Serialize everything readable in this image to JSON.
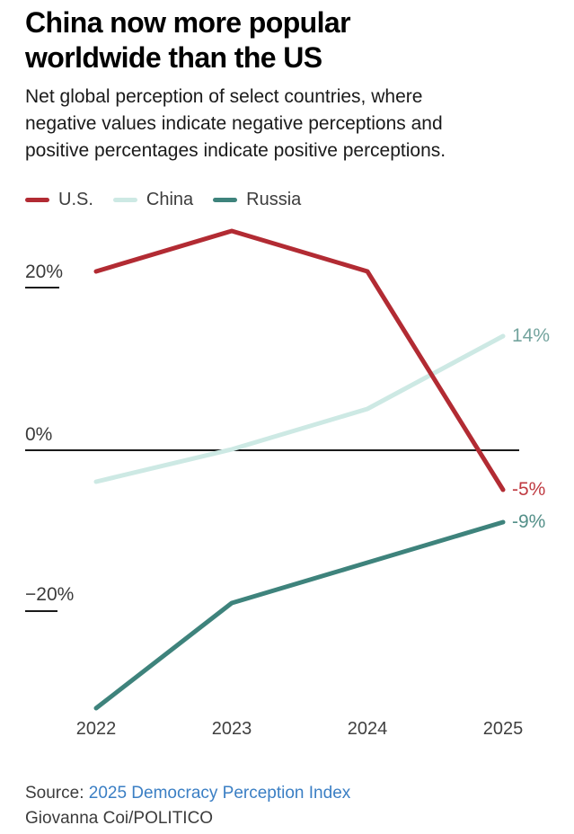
{
  "header": {
    "title_lines": [
      "China now more popular",
      "worldwide than the US"
    ],
    "subtitle_lines": [
      "Net global perception of select countries, where",
      "negative values indicate negative perceptions and",
      "positive percentages indicate positive perceptions."
    ]
  },
  "chart_data": {
    "type": "line",
    "title": "China now more popular worldwide than the US",
    "subtitle": "Net global perception of select countries, where negative values indicate negative perceptions and positive percentages indicate positive perceptions.",
    "x": [
      2022,
      2023,
      2024,
      2025
    ],
    "xtick_labels": [
      "2022",
      "2023",
      "2024",
      "2025"
    ],
    "series": [
      {
        "name": "U.S.",
        "color": "#b22b33",
        "values": [
          22,
          27,
          22,
          -5
        ],
        "end_label": "-5%",
        "end_label_color": "#bf3a41"
      },
      {
        "name": "China",
        "color": "#cde9e4",
        "values": [
          -4,
          0,
          5,
          14
        ],
        "end_label": "14%",
        "end_label_color": "#74a49e"
      },
      {
        "name": "Russia",
        "color": "#3e837c",
        "values": [
          -32,
          -19,
          -14,
          -9
        ],
        "end_label": "-9%",
        "end_label_color": "#549089"
      }
    ],
    "yticks": [
      {
        "label": "20%",
        "value": 20
      },
      {
        "label": "0%",
        "value": 0
      },
      {
        "label": "−20%",
        "value": -20
      }
    ],
    "ylim": [
      -35,
      30
    ],
    "xlabel": "",
    "ylabel": "",
    "grid": "zero-baseline-only",
    "legend_position": "top-left",
    "baseline_color": "#1a1a1a"
  },
  "footer": {
    "source_prefix": "Source: ",
    "source_link": "2025 Democracy Perception Index",
    "source_link_color": "#3b7fc4",
    "byline": "Giovanna Coi/POLITICO"
  }
}
